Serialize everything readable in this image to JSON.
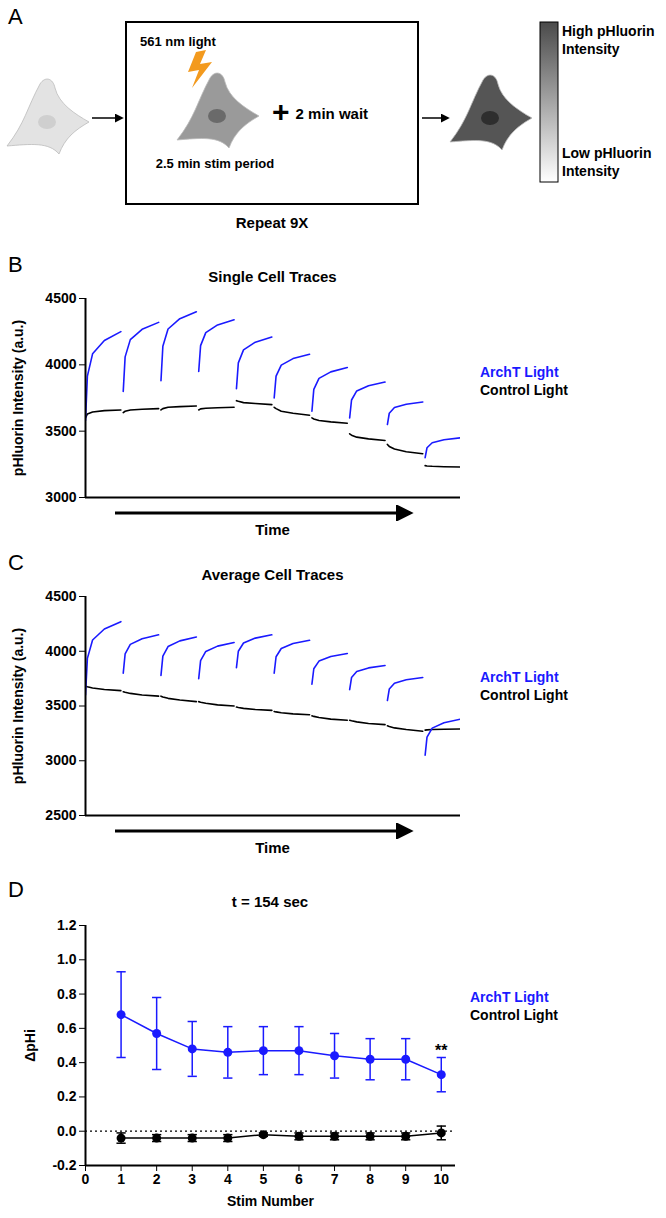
{
  "diagram": {
    "panel": "A",
    "light": "561 nm light",
    "stim": "2.5 min stim period",
    "wait": "+ 2 min wait",
    "repeat": "Repeat 9X",
    "high": "High pHluorin Intensity",
    "low": "Low pHluorin Intensity"
  },
  "chart_data": [
    {
      "panel": "B",
      "type": "line",
      "title": "Single Cell Traces",
      "x_label": "Time",
      "y_label": "pHluorin Intensity (a.u.)",
      "tick_labels": "y",
      "legend": "right",
      "x": [
        0,
        8,
        30,
        80,
        150,
        155,
        160,
        168,
        190,
        240,
        310,
        315,
        320,
        328,
        350,
        400,
        470,
        475,
        480,
        488,
        510,
        560,
        630,
        635,
        640,
        648,
        670,
        720,
        790,
        795,
        800,
        808,
        830,
        880,
        950,
        955,
        960,
        968,
        990,
        1040,
        1110,
        1115,
        1120,
        1128,
        1150,
        1200,
        1270,
        1275,
        1280,
        1288,
        1310,
        1360,
        1430,
        1435,
        1440,
        1448,
        1470,
        1520,
        1590
      ],
      "xlim": [
        0,
        1590
      ],
      "ylim": [
        3000,
        4500
      ],
      "yticks": [
        3000,
        3500,
        4000,
        4500
      ],
      "series": [
        {
          "name": "ArchT Light",
          "color": "#1a1aff",
          "values": [
            3580,
            3915,
            4083,
            4183,
            4250,
            null,
            3800,
            4060,
            4190,
            4268,
            4320,
            null,
            3880,
            4140,
            4270,
            4348,
            4400,
            null,
            3950,
            4145,
            4243,
            4301,
            4340,
            null,
            3820,
            4015,
            4113,
            4171,
            4210,
            null,
            3750,
            3915,
            3998,
            4047,
            4080,
            null,
            3650,
            3815,
            3898,
            3947,
            3980,
            null,
            3600,
            3735,
            3803,
            3843,
            3870,
            null,
            3550,
            3635,
            3678,
            3703,
            3720,
            null,
            3300,
            3375,
            3413,
            3435,
            3450
          ]
        },
        {
          "name": "Control Light",
          "color": "#000000",
          "values": [
            3600,
            3630,
            3645,
            3655,
            3660,
            null,
            3640,
            3650,
            3660,
            3665,
            3670,
            null,
            3660,
            3670,
            3680,
            3685,
            3690,
            null,
            3660,
            3668,
            3673,
            3677,
            3680,
            null,
            3730,
            3725,
            3715,
            3708,
            3700,
            null,
            3680,
            3670,
            3650,
            3635,
            3620,
            null,
            3600,
            3592,
            3580,
            3570,
            3560,
            null,
            3480,
            3470,
            3455,
            3442,
            3430,
            null,
            3400,
            3385,
            3365,
            3345,
            3330,
            null,
            3240,
            3238,
            3235,
            3232,
            3230
          ]
        }
      ]
    },
    {
      "panel": "C",
      "type": "line",
      "title": "Average Cell Traces",
      "x_label": "Time",
      "y_label": "pHluorin Intensity (a.u.)",
      "tick_labels": "y",
      "legend": "right",
      "x": [
        0,
        8,
        30,
        80,
        150,
        155,
        160,
        168,
        190,
        240,
        310,
        315,
        320,
        328,
        350,
        400,
        470,
        475,
        480,
        488,
        510,
        560,
        630,
        635,
        640,
        648,
        670,
        720,
        790,
        795,
        800,
        808,
        830,
        880,
        950,
        955,
        960,
        968,
        990,
        1040,
        1110,
        1115,
        1120,
        1128,
        1150,
        1200,
        1270,
        1275,
        1280,
        1288,
        1310,
        1360,
        1430,
        1435,
        1440,
        1448,
        1470,
        1520,
        1590
      ],
      "xlim": [
        0,
        1590
      ],
      "ylim": [
        2500,
        4500
      ],
      "yticks": [
        2500,
        3000,
        3500,
        4000,
        4500
      ],
      "series": [
        {
          "name": "ArchT Light",
          "color": "#1a1aff",
          "values": [
            3600,
            3935,
            4103,
            4203,
            4270,
            null,
            3800,
            3975,
            4063,
            4115,
            4150,
            null,
            3780,
            3955,
            4043,
            4095,
            4130,
            null,
            3750,
            3915,
            3998,
            4047,
            4080,
            null,
            3850,
            4000,
            4075,
            4120,
            4150,
            null,
            3800,
            3950,
            4025,
            4070,
            4100,
            null,
            3700,
            3840,
            3910,
            3952,
            3980,
            null,
            3650,
            3760,
            3815,
            3848,
            3870,
            null,
            3550,
            3655,
            3708,
            3739,
            3760,
            null,
            3050,
            3215,
            3298,
            3347,
            3380
          ]
        },
        {
          "name": "Control Light",
          "color": "#000000",
          "values": [
            3680,
            3675,
            3665,
            3650,
            3640,
            null,
            3630,
            3625,
            3615,
            3600,
            3590,
            null,
            3590,
            3583,
            3570,
            3555,
            3540,
            null,
            3540,
            3535,
            3525,
            3510,
            3500,
            null,
            3490,
            3486,
            3478,
            3468,
            3460,
            null,
            3450,
            3446,
            3438,
            3428,
            3420,
            null,
            3410,
            3405,
            3395,
            3380,
            3370,
            null,
            3370,
            3365,
            3355,
            3340,
            3330,
            null,
            3320,
            3313,
            3300,
            3285,
            3270,
            null,
            3280,
            3282,
            3285,
            3288,
            3290
          ]
        }
      ]
    },
    {
      "panel": "D",
      "type": "line",
      "marker": "circle",
      "line_style": "solid",
      "title": "t = 154 sec",
      "x_label": "Stim Number",
      "y_label": "ΔpHi",
      "legend": "right",
      "x": [
        1,
        2,
        3,
        4,
        5,
        6,
        7,
        8,
        9,
        10
      ],
      "xlim": [
        0,
        10.4
      ],
      "xticks": [
        0,
        1,
        2,
        3,
        4,
        5,
        6,
        7,
        8,
        9,
        10
      ],
      "ylim": [
        -0.2,
        1.2
      ],
      "yticks": [
        -0.2,
        {
          "value": 0,
          "label": "0.0"
        },
        0.2,
        0.4,
        0.6,
        0.8,
        {
          "value": 1,
          "label": "1.0"
        },
        1.2
      ],
      "reference_y": 0,
      "annotations": [
        {
          "text": "**",
          "x": 10
        }
      ],
      "series": [
        {
          "name": "ArchT Light",
          "color": "#1a1aff",
          "values": [
            0.68,
            0.57,
            0.48,
            0.46,
            0.47,
            0.47,
            0.44,
            0.42,
            0.42,
            0.33
          ],
          "error": [
            0.25,
            0.21,
            0.16,
            0.15,
            0.14,
            0.14,
            0.13,
            0.12,
            0.12,
            0.1
          ]
        },
        {
          "name": "Control Light",
          "color": "#000000",
          "values": [
            -0.04,
            -0.04,
            -0.04,
            -0.04,
            -0.02,
            -0.03,
            -0.03,
            -0.03,
            -0.03,
            -0.01
          ],
          "error": [
            0.03,
            0.02,
            0.02,
            0.02,
            0.01,
            0.02,
            0.02,
            0.02,
            0.02,
            0.04
          ]
        }
      ]
    }
  ]
}
